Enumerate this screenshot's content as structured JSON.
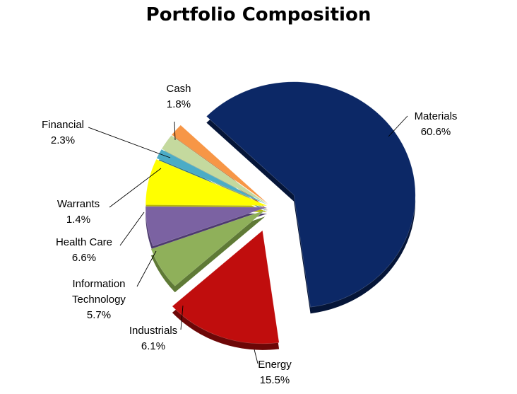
{
  "chart_data": {
    "type": "pie",
    "title": "Portfolio Composition",
    "slices": [
      {
        "name": "Materials",
        "value": 60.6,
        "label": "60.6%",
        "color": "#0c2866",
        "side": "#051538"
      },
      {
        "name": "Energy",
        "value": 15.5,
        "label": "15.5%",
        "color": "#c00d0d",
        "side": "#6d0707"
      },
      {
        "name": "Industrials",
        "value": 6.1,
        "label": "6.1%",
        "color": "#8fb05a",
        "side": "#5f7a36"
      },
      {
        "name": "Information Technology",
        "value": 5.7,
        "label": "5.7%",
        "color": "#7b62a2",
        "side": "#4d3a6e"
      },
      {
        "name": "Health Care",
        "value": 6.6,
        "label": "6.6%",
        "color": "#ffff00",
        "side": "#b8b800"
      },
      {
        "name": "Warrants",
        "value": 1.4,
        "label": "1.4%",
        "color": "#4bacc6",
        "side": "#2a6d80"
      },
      {
        "name": "Financial",
        "value": 2.3,
        "label": "2.3%",
        "color": "#c4d99e",
        "side": "#8ea16b"
      },
      {
        "name": "Cash",
        "value": 1.8,
        "label": "1.8%",
        "color": "#f79646",
        "side": "#b06223"
      }
    ]
  }
}
